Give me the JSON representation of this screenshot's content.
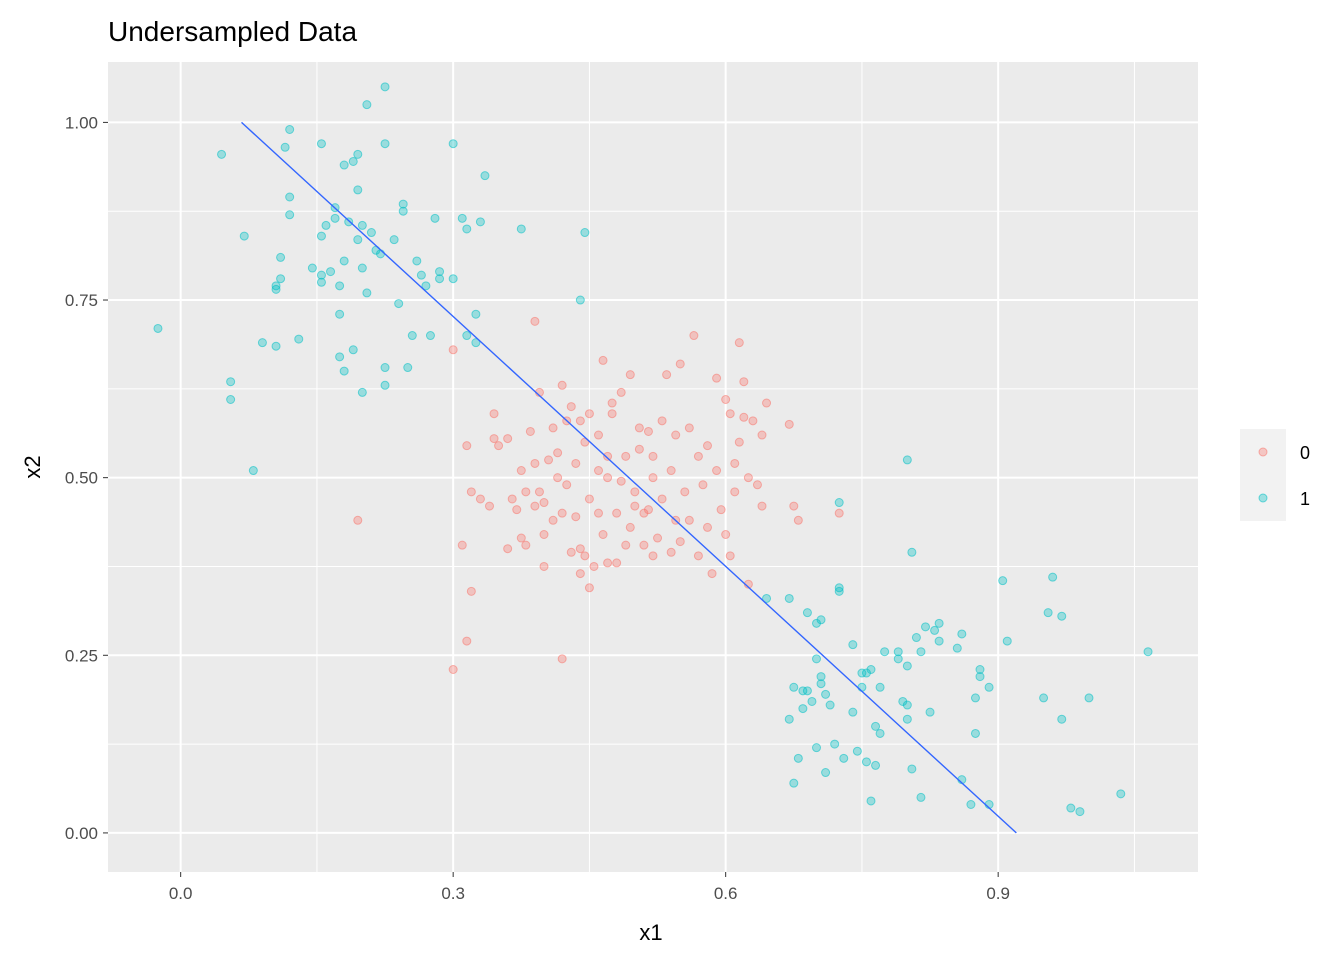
{
  "chart_data": {
    "type": "scatter",
    "title": "Undersampled Data",
    "xlabel": "x1",
    "ylabel": "x2",
    "xlim": [
      -0.08,
      1.12
    ],
    "ylim": [
      -0.055,
      1.085
    ],
    "x_ticks": [
      0.0,
      0.3,
      0.6,
      0.9
    ],
    "x_tick_labels": [
      "0.0",
      "0.3",
      "0.6",
      "0.9"
    ],
    "y_ticks": [
      0.0,
      0.25,
      0.5,
      0.75,
      1.0
    ],
    "y_tick_labels": [
      "0.00",
      "0.25",
      "0.50",
      "0.75",
      "1.00"
    ],
    "grid": true,
    "legend_position": "right",
    "legend": [
      {
        "label": "0",
        "color": "#F8766D"
      },
      {
        "label": "1",
        "color": "#00BFC4"
      }
    ],
    "series": [
      {
        "name": "0",
        "color": "#F8766D",
        "points": [
          [
            0.3,
            0.68
          ],
          [
            0.31,
            0.405
          ],
          [
            0.315,
            0.545
          ],
          [
            0.32,
            0.34
          ],
          [
            0.32,
            0.48
          ],
          [
            0.315,
            0.27
          ],
          [
            0.3,
            0.23
          ],
          [
            0.33,
            0.47
          ],
          [
            0.34,
            0.46
          ],
          [
            0.345,
            0.59
          ],
          [
            0.345,
            0.555
          ],
          [
            0.35,
            0.545
          ],
          [
            0.36,
            0.4
          ],
          [
            0.36,
            0.555
          ],
          [
            0.365,
            0.47
          ],
          [
            0.37,
            0.455
          ],
          [
            0.375,
            0.51
          ],
          [
            0.375,
            0.415
          ],
          [
            0.38,
            0.48
          ],
          [
            0.38,
            0.405
          ],
          [
            0.385,
            0.565
          ],
          [
            0.39,
            0.46
          ],
          [
            0.39,
            0.52
          ],
          [
            0.39,
            0.72
          ],
          [
            0.395,
            0.48
          ],
          [
            0.395,
            0.62
          ],
          [
            0.4,
            0.42
          ],
          [
            0.4,
            0.375
          ],
          [
            0.4,
            0.465
          ],
          [
            0.405,
            0.525
          ],
          [
            0.41,
            0.44
          ],
          [
            0.41,
            0.57
          ],
          [
            0.415,
            0.535
          ],
          [
            0.415,
            0.5
          ],
          [
            0.42,
            0.45
          ],
          [
            0.42,
            0.63
          ],
          [
            0.42,
            0.245
          ],
          [
            0.425,
            0.49
          ],
          [
            0.425,
            0.58
          ],
          [
            0.43,
            0.395
          ],
          [
            0.43,
            0.6
          ],
          [
            0.435,
            0.52
          ],
          [
            0.435,
            0.445
          ],
          [
            0.44,
            0.58
          ],
          [
            0.44,
            0.4
          ],
          [
            0.44,
            0.365
          ],
          [
            0.445,
            0.55
          ],
          [
            0.445,
            0.39
          ],
          [
            0.45,
            0.59
          ],
          [
            0.45,
            0.47
          ],
          [
            0.45,
            0.345
          ],
          [
            0.455,
            0.375
          ],
          [
            0.46,
            0.51
          ],
          [
            0.46,
            0.45
          ],
          [
            0.46,
            0.56
          ],
          [
            0.465,
            0.42
          ],
          [
            0.465,
            0.665
          ],
          [
            0.47,
            0.38
          ],
          [
            0.47,
            0.53
          ],
          [
            0.47,
            0.5
          ],
          [
            0.475,
            0.59
          ],
          [
            0.475,
            0.605
          ],
          [
            0.48,
            0.45
          ],
          [
            0.48,
            0.38
          ],
          [
            0.485,
            0.495
          ],
          [
            0.485,
            0.62
          ],
          [
            0.49,
            0.53
          ],
          [
            0.49,
            0.405
          ],
          [
            0.495,
            0.43
          ],
          [
            0.495,
            0.645
          ],
          [
            0.5,
            0.46
          ],
          [
            0.5,
            0.48
          ],
          [
            0.505,
            0.54
          ],
          [
            0.505,
            0.57
          ],
          [
            0.51,
            0.45
          ],
          [
            0.51,
            0.405
          ],
          [
            0.515,
            0.455
          ],
          [
            0.515,
            0.565
          ],
          [
            0.52,
            0.39
          ],
          [
            0.52,
            0.5
          ],
          [
            0.52,
            0.53
          ],
          [
            0.525,
            0.415
          ],
          [
            0.53,
            0.58
          ],
          [
            0.53,
            0.47
          ],
          [
            0.535,
            0.645
          ],
          [
            0.54,
            0.51
          ],
          [
            0.54,
            0.395
          ],
          [
            0.545,
            0.44
          ],
          [
            0.545,
            0.56
          ],
          [
            0.55,
            0.66
          ],
          [
            0.55,
            0.41
          ],
          [
            0.555,
            0.48
          ],
          [
            0.56,
            0.44
          ],
          [
            0.56,
            0.57
          ],
          [
            0.565,
            0.7
          ],
          [
            0.57,
            0.39
          ],
          [
            0.57,
            0.53
          ],
          [
            0.575,
            0.49
          ],
          [
            0.58,
            0.43
          ],
          [
            0.58,
            0.545
          ],
          [
            0.585,
            0.365
          ],
          [
            0.59,
            0.51
          ],
          [
            0.59,
            0.64
          ],
          [
            0.595,
            0.455
          ],
          [
            0.6,
            0.42
          ],
          [
            0.6,
            0.61
          ],
          [
            0.605,
            0.59
          ],
          [
            0.605,
            0.39
          ],
          [
            0.61,
            0.48
          ],
          [
            0.61,
            0.52
          ],
          [
            0.615,
            0.69
          ],
          [
            0.615,
            0.55
          ],
          [
            0.62,
            0.635
          ],
          [
            0.62,
            0.585
          ],
          [
            0.625,
            0.5
          ],
          [
            0.625,
            0.35
          ],
          [
            0.63,
            0.58
          ],
          [
            0.635,
            0.49
          ],
          [
            0.64,
            0.46
          ],
          [
            0.64,
            0.56
          ],
          [
            0.645,
            0.605
          ],
          [
            0.67,
            0.575
          ],
          [
            0.675,
            0.46
          ],
          [
            0.68,
            0.44
          ],
          [
            0.725,
            0.45
          ],
          [
            0.195,
            0.44
          ]
        ]
      },
      {
        "name": "1",
        "color": "#00BFC4",
        "points": [
          [
            -0.025,
            0.71
          ],
          [
            0.045,
            0.955
          ],
          [
            0.055,
            0.635
          ],
          [
            0.055,
            0.61
          ],
          [
            0.07,
            0.84
          ],
          [
            0.08,
            0.51
          ],
          [
            0.09,
            0.69
          ],
          [
            0.105,
            0.685
          ],
          [
            0.105,
            0.765
          ],
          [
            0.105,
            0.77
          ],
          [
            0.11,
            0.78
          ],
          [
            0.11,
            0.81
          ],
          [
            0.115,
            0.965
          ],
          [
            0.12,
            0.87
          ],
          [
            0.12,
            0.895
          ],
          [
            0.12,
            0.99
          ],
          [
            0.13,
            0.695
          ],
          [
            0.145,
            0.795
          ],
          [
            0.155,
            0.775
          ],
          [
            0.155,
            0.785
          ],
          [
            0.155,
            0.84
          ],
          [
            0.155,
            0.97
          ],
          [
            0.16,
            0.855
          ],
          [
            0.165,
            0.79
          ],
          [
            0.17,
            0.88
          ],
          [
            0.17,
            0.865
          ],
          [
            0.175,
            0.73
          ],
          [
            0.175,
            0.67
          ],
          [
            0.175,
            0.77
          ],
          [
            0.18,
            0.65
          ],
          [
            0.18,
            0.94
          ],
          [
            0.18,
            0.805
          ],
          [
            0.185,
            0.86
          ],
          [
            0.19,
            0.945
          ],
          [
            0.19,
            0.68
          ],
          [
            0.195,
            0.955
          ],
          [
            0.195,
            0.905
          ],
          [
            0.195,
            0.835
          ],
          [
            0.2,
            0.795
          ],
          [
            0.2,
            0.855
          ],
          [
            0.2,
            0.62
          ],
          [
            0.205,
            1.025
          ],
          [
            0.205,
            0.76
          ],
          [
            0.21,
            0.845
          ],
          [
            0.215,
            0.82
          ],
          [
            0.22,
            0.815
          ],
          [
            0.225,
            0.655
          ],
          [
            0.225,
            0.63
          ],
          [
            0.225,
            1.05
          ],
          [
            0.225,
            0.97
          ],
          [
            0.235,
            0.835
          ],
          [
            0.24,
            0.745
          ],
          [
            0.245,
            0.875
          ],
          [
            0.245,
            0.885
          ],
          [
            0.25,
            0.655
          ],
          [
            0.255,
            0.7
          ],
          [
            0.26,
            0.805
          ],
          [
            0.265,
            0.785
          ],
          [
            0.27,
            0.77
          ],
          [
            0.275,
            0.7
          ],
          [
            0.28,
            0.865
          ],
          [
            0.285,
            0.79
          ],
          [
            0.285,
            0.78
          ],
          [
            0.3,
            0.78
          ],
          [
            0.3,
            0.97
          ],
          [
            0.31,
            0.865
          ],
          [
            0.315,
            0.85
          ],
          [
            0.315,
            0.7
          ],
          [
            0.325,
            0.73
          ],
          [
            0.325,
            0.69
          ],
          [
            0.33,
            0.86
          ],
          [
            0.335,
            0.925
          ],
          [
            0.375,
            0.85
          ],
          [
            0.44,
            0.75
          ],
          [
            0.445,
            0.845
          ],
          [
            0.645,
            0.33
          ],
          [
            0.67,
            0.33
          ],
          [
            0.67,
            0.16
          ],
          [
            0.675,
            0.205
          ],
          [
            0.675,
            0.07
          ],
          [
            0.68,
            0.105
          ],
          [
            0.685,
            0.175
          ],
          [
            0.685,
            0.2
          ],
          [
            0.69,
            0.2
          ],
          [
            0.69,
            0.31
          ],
          [
            0.695,
            0.185
          ],
          [
            0.7,
            0.295
          ],
          [
            0.7,
            0.245
          ],
          [
            0.7,
            0.12
          ],
          [
            0.705,
            0.22
          ],
          [
            0.705,
            0.21
          ],
          [
            0.705,
            0.3
          ],
          [
            0.71,
            0.085
          ],
          [
            0.71,
            0.195
          ],
          [
            0.715,
            0.18
          ],
          [
            0.72,
            0.125
          ],
          [
            0.725,
            0.345
          ],
          [
            0.725,
            0.34
          ],
          [
            0.725,
            0.465
          ],
          [
            0.73,
            0.105
          ],
          [
            0.74,
            0.17
          ],
          [
            0.74,
            0.265
          ],
          [
            0.745,
            0.115
          ],
          [
            0.75,
            0.225
          ],
          [
            0.75,
            0.205
          ],
          [
            0.755,
            0.225
          ],
          [
            0.755,
            0.1
          ],
          [
            0.76,
            0.23
          ],
          [
            0.76,
            0.045
          ],
          [
            0.765,
            0.095
          ],
          [
            0.765,
            0.15
          ],
          [
            0.77,
            0.205
          ],
          [
            0.77,
            0.14
          ],
          [
            0.775,
            0.255
          ],
          [
            0.79,
            0.245
          ],
          [
            0.79,
            0.255
          ],
          [
            0.795,
            0.185
          ],
          [
            0.8,
            0.525
          ],
          [
            0.8,
            0.18
          ],
          [
            0.8,
            0.16
          ],
          [
            0.8,
            0.235
          ],
          [
            0.805,
            0.09
          ],
          [
            0.805,
            0.395
          ],
          [
            0.81,
            0.275
          ],
          [
            0.815,
            0.05
          ],
          [
            0.815,
            0.255
          ],
          [
            0.82,
            0.29
          ],
          [
            0.825,
            0.17
          ],
          [
            0.83,
            0.285
          ],
          [
            0.835,
            0.295
          ],
          [
            0.835,
            0.27
          ],
          [
            0.855,
            0.26
          ],
          [
            0.86,
            0.075
          ],
          [
            0.86,
            0.28
          ],
          [
            0.87,
            0.04
          ],
          [
            0.875,
            0.14
          ],
          [
            0.875,
            0.19
          ],
          [
            0.88,
            0.22
          ],
          [
            0.88,
            0.23
          ],
          [
            0.89,
            0.205
          ],
          [
            0.89,
            0.04
          ],
          [
            0.905,
            0.355
          ],
          [
            0.91,
            0.27
          ],
          [
            0.95,
            0.19
          ],
          [
            0.955,
            0.31
          ],
          [
            0.96,
            0.36
          ],
          [
            0.97,
            0.305
          ],
          [
            0.97,
            0.16
          ],
          [
            0.98,
            0.035
          ],
          [
            0.99,
            0.03
          ],
          [
            1.0,
            0.19
          ],
          [
            1.035,
            0.055
          ],
          [
            1.065,
            0.255
          ]
        ]
      }
    ],
    "line": {
      "color": "#3366FF",
      "points": [
        [
          0.067,
          1.0
        ],
        [
          0.92,
          0.0
        ]
      ]
    }
  }
}
